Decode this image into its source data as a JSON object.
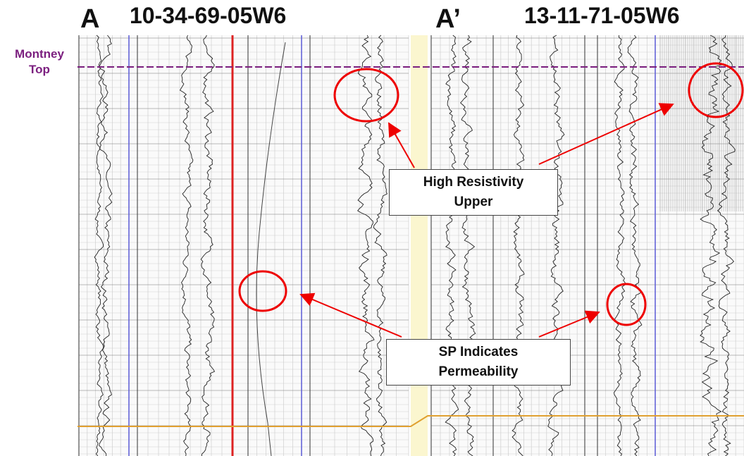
{
  "header": {
    "well_a_letter": "A",
    "well_a_name": "10-34-69-05W6",
    "well_b_letter": "A’",
    "well_b_name": "13-11-71-05W6"
  },
  "marker": {
    "label": "Montney Top"
  },
  "callouts": [
    {
      "label": "High Resistivity Upper"
    },
    {
      "label": "SP Indicates Permeability"
    }
  ]
}
